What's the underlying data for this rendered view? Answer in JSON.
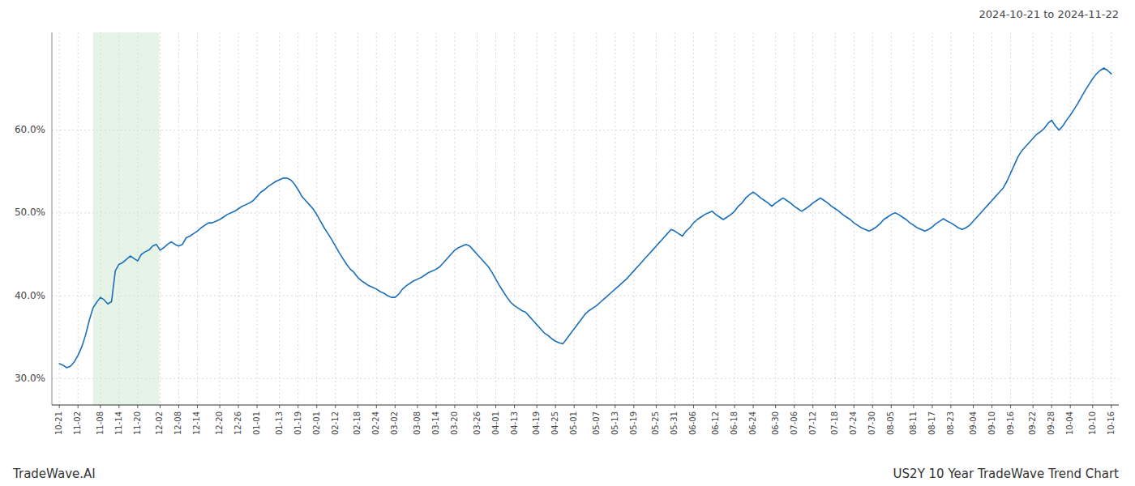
{
  "chart_data": {
    "type": "line",
    "title": "2024-10-21 to 2024-11-22",
    "annotations": [
      "TradeWave.AI",
      "US2Y 10 Year TradeWave Trend Chart"
    ],
    "categories": [
      "10-21",
      null,
      null,
      null,
      null,
      "11-02",
      null,
      null,
      null,
      null,
      null,
      "11-08",
      null,
      null,
      null,
      null,
      "11-14",
      null,
      null,
      null,
      null,
      "11-20",
      null,
      null,
      null,
      null,
      null,
      "12-02",
      null,
      null,
      null,
      null,
      "12-08",
      null,
      null,
      null,
      null,
      "12-14",
      null,
      null,
      null,
      null,
      null,
      "12-20",
      null,
      null,
      null,
      null,
      "12-26",
      null,
      null,
      null,
      null,
      "01-01",
      null,
      null,
      null,
      null,
      null,
      "01-13",
      null,
      null,
      null,
      null,
      "01-19",
      null,
      null,
      null,
      null,
      "02-01",
      null,
      null,
      null,
      null,
      "02-12",
      null,
      null,
      null,
      null,
      null,
      "02-18",
      null,
      null,
      null,
      null,
      "02-24",
      null,
      null,
      null,
      null,
      "03-02",
      null,
      null,
      null,
      null,
      null,
      "03-08",
      null,
      null,
      null,
      null,
      "03-14",
      null,
      null,
      null,
      null,
      "03-20",
      null,
      null,
      null,
      null,
      null,
      "03-26",
      null,
      null,
      null,
      null,
      "04-01",
      null,
      null,
      null,
      null,
      "04-13",
      null,
      null,
      null,
      null,
      null,
      "04-19",
      null,
      null,
      null,
      null,
      "04-25",
      null,
      null,
      null,
      null,
      "05-01",
      null,
      null,
      null,
      null,
      null,
      "05-07",
      null,
      null,
      null,
      null,
      "05-13",
      null,
      null,
      null,
      null,
      "05-19",
      null,
      null,
      null,
      null,
      null,
      "05-25",
      null,
      null,
      null,
      null,
      "05-31",
      null,
      null,
      null,
      null,
      "06-06",
      null,
      null,
      null,
      null,
      null,
      "06-12",
      null,
      null,
      null,
      null,
      "06-18",
      null,
      null,
      null,
      null,
      "06-24",
      null,
      null,
      null,
      null,
      null,
      "06-30",
      null,
      null,
      null,
      null,
      "07-06",
      null,
      null,
      null,
      null,
      "07-12",
      null,
      null,
      null,
      null,
      null,
      "07-18",
      null,
      null,
      null,
      null,
      "07-24",
      null,
      null,
      null,
      null,
      "07-30",
      null,
      null,
      null,
      null,
      "08-05",
      null,
      null,
      null,
      null,
      null,
      "08-11",
      null,
      null,
      null,
      null,
      "08-17",
      null,
      null,
      null,
      null,
      "08-23",
      null,
      null,
      null,
      null,
      null,
      "09-04",
      null,
      null,
      null,
      null,
      "09-10",
      null,
      null,
      null,
      null,
      "09-16",
      null,
      null,
      null,
      null,
      null,
      "09-22",
      null,
      null,
      null,
      null,
      "09-28",
      null,
      null,
      null,
      null,
      "10-04",
      null,
      null,
      null,
      null,
      null,
      "10-10",
      null,
      null,
      null,
      null,
      "10-16"
    ],
    "values": [
      0.318,
      0.316,
      0.313,
      0.315,
      0.32,
      0.328,
      0.338,
      0.352,
      0.37,
      0.385,
      0.392,
      0.398,
      0.395,
      0.39,
      0.393,
      0.43,
      0.438,
      0.44,
      0.444,
      0.448,
      0.445,
      0.442,
      0.45,
      0.453,
      0.455,
      0.46,
      0.462,
      0.455,
      0.458,
      0.462,
      0.465,
      0.462,
      0.46,
      0.462,
      0.47,
      0.472,
      0.475,
      0.478,
      0.482,
      0.485,
      0.488,
      0.488,
      0.49,
      0.492,
      0.495,
      0.498,
      0.5,
      0.502,
      0.505,
      0.508,
      0.51,
      0.512,
      0.515,
      0.52,
      0.525,
      0.528,
      0.532,
      0.535,
      0.538,
      0.54,
      0.542,
      0.542,
      0.54,
      0.535,
      0.528,
      0.52,
      0.515,
      0.51,
      0.505,
      0.498,
      0.49,
      0.482,
      0.475,
      0.468,
      0.46,
      0.452,
      0.445,
      0.438,
      0.432,
      0.428,
      0.422,
      0.418,
      0.415,
      0.412,
      0.41,
      0.408,
      0.405,
      0.403,
      0.4,
      0.398,
      0.398,
      0.402,
      0.408,
      0.412,
      0.415,
      0.418,
      0.42,
      0.422,
      0.425,
      0.428,
      0.43,
      0.432,
      0.435,
      0.44,
      0.445,
      0.45,
      0.455,
      0.458,
      0.46,
      0.462,
      0.46,
      0.455,
      0.45,
      0.445,
      0.44,
      0.435,
      0.428,
      0.42,
      0.412,
      0.405,
      0.398,
      0.392,
      0.388,
      0.385,
      0.382,
      0.38,
      0.375,
      0.37,
      0.365,
      0.36,
      0.355,
      0.352,
      0.348,
      0.345,
      0.343,
      0.342,
      0.348,
      0.354,
      0.36,
      0.366,
      0.372,
      0.378,
      0.382,
      0.385,
      0.388,
      0.392,
      0.396,
      0.4,
      0.404,
      0.408,
      0.412,
      0.416,
      0.42,
      0.425,
      0.43,
      0.435,
      0.44,
      0.445,
      0.45,
      0.455,
      0.46,
      0.465,
      0.47,
      0.475,
      0.48,
      0.478,
      0.475,
      0.472,
      0.478,
      0.482,
      0.488,
      0.492,
      0.495,
      0.498,
      0.5,
      0.502,
      0.498,
      0.495,
      0.492,
      0.495,
      0.498,
      0.502,
      0.508,
      0.512,
      0.518,
      0.522,
      0.525,
      0.522,
      0.518,
      0.515,
      0.512,
      0.508,
      0.512,
      0.515,
      0.518,
      0.515,
      0.512,
      0.508,
      0.505,
      0.502,
      0.505,
      0.508,
      0.512,
      0.515,
      0.518,
      0.515,
      0.512,
      0.508,
      0.505,
      0.502,
      0.498,
      0.495,
      0.492,
      0.488,
      0.485,
      0.482,
      0.48,
      0.478,
      0.48,
      0.483,
      0.487,
      0.492,
      0.495,
      0.498,
      0.5,
      0.498,
      0.495,
      0.492,
      0.488,
      0.485,
      0.482,
      0.48,
      0.478,
      0.48,
      0.483,
      0.487,
      0.49,
      0.493,
      0.49,
      0.488,
      0.485,
      0.482,
      0.48,
      0.482,
      0.485,
      0.49,
      0.495,
      0.5,
      0.505,
      0.51,
      0.515,
      0.52,
      0.525,
      0.53,
      0.538,
      0.548,
      0.558,
      0.568,
      0.575,
      0.58,
      0.585,
      0.59,
      0.595,
      0.598,
      0.602,
      0.608,
      0.612,
      0.605,
      0.6,
      0.605,
      0.612,
      0.618,
      0.625,
      0.632,
      0.64,
      0.648,
      0.655,
      0.662,
      0.668,
      0.672,
      0.675,
      0.672,
      0.668
    ],
    "color": "#1a6fbd",
    "ylim": [
      0.268,
      0.718
    ],
    "yticks": [
      {
        "value": 0.3,
        "label": "30.0%"
      },
      {
        "value": 0.4,
        "label": "40.0%"
      },
      {
        "value": 0.5,
        "label": "50.0%"
      },
      {
        "value": 0.6,
        "label": "60.0%"
      }
    ],
    "grid": true,
    "shade": {
      "from": 9.024,
      "to": 26.79,
      "color": "#c8e6c9"
    }
  }
}
